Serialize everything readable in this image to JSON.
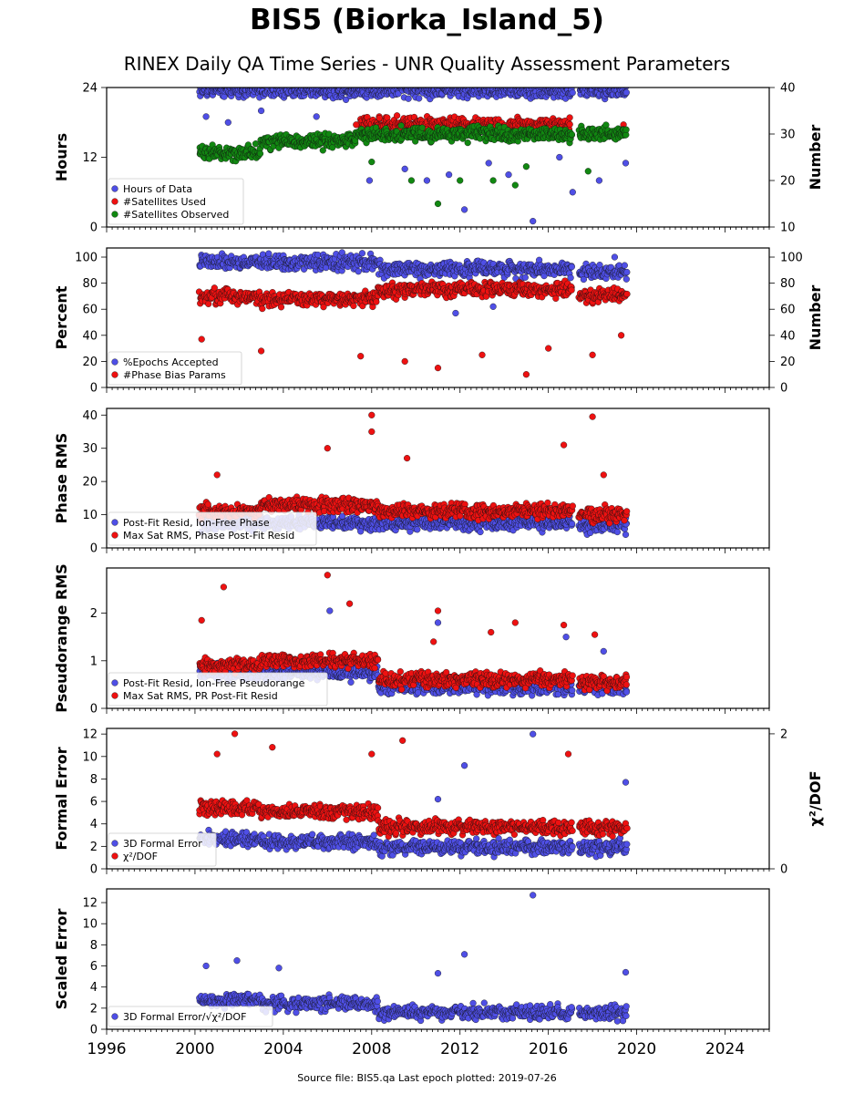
{
  "title": "BIS5 (Biorka_Island_5)",
  "subtitle": "RINEX Daily QA Time Series - UNR Quality Assessment Parameters",
  "footer": "Source file: BIS5.qa Last epoch plotted: 2019-07-26",
  "colors": {
    "blue": "#4f4fe6",
    "red": "#ee1111",
    "green": "#118811"
  },
  "chart_data": [
    {
      "type": "scatter",
      "name": "Hours / Satellites",
      "xlim": [
        1996,
        2026
      ],
      "x_ticks": [
        1996,
        2000,
        2004,
        2008,
        2012,
        2016,
        2020,
        2024
      ],
      "ylabel": "Hours",
      "ylim": [
        0,
        24
      ],
      "yticks": [
        0,
        12,
        24
      ],
      "ylabel_right": "Number",
      "ylim_right": [
        10,
        40
      ],
      "yticks_right": [
        10,
        20,
        30,
        40
      ],
      "legend": [
        "Hours of Data",
        "#Satellites Used",
        "#Satellites Observed"
      ],
      "series": [
        {
          "name": "Hours of Data",
          "axis": "left",
          "color": "blue",
          "segments": [
            [
              2000.2,
              2017.1,
              23.5
            ],
            [
              2017.4,
              2019.57,
              23.5
            ]
          ],
          "outliers": [
            [
              2000.5,
              19
            ],
            [
              2001.5,
              18
            ],
            [
              2003.0,
              20
            ],
            [
              2005.5,
              19
            ],
            [
              2007.9,
              8
            ],
            [
              2008.6,
              17
            ],
            [
              2009.5,
              10
            ],
            [
              2010.5,
              8
            ],
            [
              2011.5,
              9
            ],
            [
              2012.2,
              3
            ],
            [
              2013.3,
              11
            ],
            [
              2014.2,
              9
            ],
            [
              2015.3,
              1
            ],
            [
              2016.5,
              12
            ],
            [
              2017.1,
              6
            ],
            [
              2018.3,
              8
            ],
            [
              2019.5,
              11
            ]
          ]
        },
        {
          "name": "#Satellites Used",
          "axis": "right",
          "color": "red",
          "segments": [
            [
              2007.5,
              2017.0,
              32
            ]
          ],
          "outliers": [
            [
              2007.3,
              32
            ],
            [
              2010.5,
              31
            ],
            [
              2019.4,
              32
            ]
          ]
        },
        {
          "name": "#Satellites Observed",
          "axis": "right",
          "color": "green",
          "segments": [
            [
              2000.2,
              2003.0,
              26
            ],
            [
              2003.0,
              2007.3,
              28.5
            ],
            [
              2007.3,
              2017.1,
              30
            ],
            [
              2017.4,
              2019.57,
              30
            ]
          ],
          "outliers": [
            [
              2008.0,
              24
            ],
            [
              2009.8,
              20
            ],
            [
              2011.0,
              15
            ],
            [
              2012.0,
              20
            ],
            [
              2013.5,
              20
            ],
            [
              2014.5,
              19
            ],
            [
              2015.0,
              23
            ],
            [
              2017.8,
              22
            ]
          ]
        }
      ]
    },
    {
      "type": "scatter",
      "name": "Percent / Phase Bias",
      "xlim": [
        1996,
        2026
      ],
      "x_ticks": [
        1996,
        2000,
        2004,
        2008,
        2012,
        2016,
        2020,
        2024
      ],
      "ylabel": "Percent",
      "ylim": [
        0,
        107
      ],
      "yticks": [
        0,
        20,
        40,
        60,
        80,
        100
      ],
      "ylabel_right": "Number",
      "ylim_right": [
        0,
        107
      ],
      "yticks_right": [
        0,
        20,
        40,
        60,
        80,
        100
      ],
      "legend": [
        "%Epochs Accepted",
        "#Phase Bias Params"
      ],
      "series": [
        {
          "name": "%Epochs Accepted",
          "axis": "left",
          "color": "blue",
          "segments": [
            [
              2000.2,
              2008.3,
              96
            ],
            [
              2008.3,
              2017.1,
              91
            ],
            [
              2017.4,
              2019.57,
              89
            ]
          ],
          "outliers": [
            [
              2011.8,
              57
            ],
            [
              2013.5,
              62
            ],
            [
              2019.0,
              100
            ]
          ]
        },
        {
          "name": "#Phase Bias Params",
          "axis": "left",
          "color": "red",
          "segments": [
            [
              2000.2,
              2003.0,
              70
            ],
            [
              2003.0,
              2008.3,
              68
            ],
            [
              2008.3,
              2017.1,
              75
            ],
            [
              2017.4,
              2019.57,
              70
            ]
          ],
          "outliers": [
            [
              2000.3,
              37
            ],
            [
              2003.0,
              28
            ],
            [
              2007.5,
              24
            ],
            [
              2009.5,
              20
            ],
            [
              2011.0,
              15
            ],
            [
              2013.0,
              25
            ],
            [
              2015.0,
              10
            ],
            [
              2016.0,
              30
            ],
            [
              2018.0,
              25
            ],
            [
              2019.3,
              40
            ]
          ]
        }
      ]
    },
    {
      "type": "scatter",
      "name": "Phase RMS",
      "xlim": [
        1996,
        2026
      ],
      "x_ticks": [
        1996,
        2000,
        2004,
        2008,
        2012,
        2016,
        2020,
        2024
      ],
      "ylabel": "Phase RMS",
      "ylim": [
        0,
        42
      ],
      "yticks": [
        0,
        10,
        20,
        30,
        40
      ],
      "legend": [
        "Post-Fit Resid, Ion-Free Phase",
        "Max Sat RMS, Phase Post-Fit Resid"
      ],
      "series": [
        {
          "name": "Post-Fit Resid, Ion-Free Phase",
          "axis": "left",
          "color": "blue",
          "segments": [
            [
              2000.2,
              2017.1,
              7.5
            ],
            [
              2017.4,
              2019.57,
              7
            ]
          ],
          "outliers": [
            [
              2007.5,
              5
            ],
            [
              2019.5,
              4
            ]
          ]
        },
        {
          "name": "Max Sat RMS, Phase Post-Fit Resid",
          "axis": "left",
          "color": "red",
          "segments": [
            [
              2000.2,
              2003.0,
              11
            ],
            [
              2003.0,
              2008.3,
              13
            ],
            [
              2008.3,
              2017.1,
              11
            ],
            [
              2017.4,
              2019.57,
              10
            ]
          ],
          "outliers": [
            [
              2001.0,
              22
            ],
            [
              2006.0,
              30
            ],
            [
              2008.0,
              40
            ],
            [
              2008.0,
              35
            ],
            [
              2009.6,
              27
            ],
            [
              2016.7,
              31
            ],
            [
              2018.0,
              39.5
            ],
            [
              2018.5,
              22
            ]
          ]
        }
      ]
    },
    {
      "type": "scatter",
      "name": "Pseudorange RMS",
      "xlim": [
        1996,
        2026
      ],
      "x_ticks": [
        1996,
        2000,
        2004,
        2008,
        2012,
        2016,
        2020,
        2024
      ],
      "ylabel": "Pseudorange RMS",
      "ylim": [
        0,
        2.95
      ],
      "yticks": [
        0,
        1,
        2
      ],
      "legend": [
        "Post-Fit Resid, Ion-Free Pseudorange",
        "Max Sat RMS, PR Post-Fit Resid"
      ],
      "series": [
        {
          "name": "Post-Fit Resid, Ion-Free Pseudorange",
          "axis": "left",
          "color": "blue",
          "segments": [
            [
              2000.2,
              2003.0,
              0.75
            ],
            [
              2003.0,
              2008.3,
              0.75
            ],
            [
              2008.3,
              2017.1,
              0.45
            ],
            [
              2017.4,
              2019.57,
              0.45
            ]
          ],
          "outliers": [
            [
              2006.1,
              2.05
            ],
            [
              2011.0,
              1.8
            ],
            [
              2016.8,
              1.5
            ],
            [
              2018.5,
              1.2
            ]
          ]
        },
        {
          "name": "Max Sat RMS, PR Post-Fit Resid",
          "axis": "left",
          "color": "red",
          "segments": [
            [
              2000.2,
              2003.0,
              0.9
            ],
            [
              2003.0,
              2008.3,
              1.0
            ],
            [
              2008.3,
              2017.1,
              0.6
            ],
            [
              2017.4,
              2019.57,
              0.55
            ]
          ],
          "outliers": [
            [
              2000.3,
              1.85
            ],
            [
              2001.3,
              2.55
            ],
            [
              2006.0,
              2.8
            ],
            [
              2007.0,
              2.2
            ],
            [
              2010.8,
              1.4
            ],
            [
              2011.0,
              2.05
            ],
            [
              2013.4,
              1.6
            ],
            [
              2014.5,
              1.8
            ],
            [
              2016.7,
              1.75
            ],
            [
              2018.1,
              1.55
            ]
          ]
        }
      ]
    },
    {
      "type": "scatter",
      "name": "Formal Error",
      "xlim": [
        1996,
        2026
      ],
      "x_ticks": [
        1996,
        2000,
        2004,
        2008,
        2012,
        2016,
        2020,
        2024
      ],
      "ylabel": "Formal Error",
      "ylim": [
        0,
        12.5
      ],
      "yticks": [
        0,
        2,
        4,
        6,
        8,
        10,
        12
      ],
      "ylabel_right": "χ²/DOF",
      "ylim_right": [
        0,
        2.08
      ],
      "yticks_right": [
        0,
        2
      ],
      "legend": [
        "3D Formal Error",
        "χ²/DOF"
      ],
      "series": [
        {
          "name": "3D Formal Error",
          "axis": "left",
          "color": "blue",
          "segments": [
            [
              2000.2,
              2003.0,
              2.7
            ],
            [
              2003.0,
              2008.3,
              2.4
            ],
            [
              2008.3,
              2017.1,
              1.9
            ],
            [
              2017.4,
              2019.57,
              1.9
            ]
          ],
          "outliers": [
            [
              2012.2,
              9.2
            ],
            [
              2015.3,
              12
            ],
            [
              2019.5,
              7.7
            ],
            [
              2011.0,
              6.2
            ]
          ]
        },
        {
          "name": "χ²/DOF",
          "axis": "right",
          "color": "red",
          "segments": [
            [
              2000.2,
              2003.0,
              0.9
            ],
            [
              2003.0,
              2008.3,
              0.85
            ],
            [
              2008.3,
              2017.1,
              0.62
            ],
            [
              2017.4,
              2019.57,
              0.62
            ]
          ],
          "outliers": [
            [
              2001.0,
              1.7
            ],
            [
              2001.8,
              2.0
            ],
            [
              2003.5,
              1.8
            ],
            [
              2008.0,
              1.7
            ],
            [
              2009.4,
              1.9
            ],
            [
              2016.9,
              1.7
            ]
          ]
        }
      ]
    },
    {
      "type": "scatter",
      "name": "Scaled Error",
      "xlim": [
        1996,
        2026
      ],
      "x_ticks": [
        1996,
        2000,
        2004,
        2008,
        2012,
        2016,
        2020,
        2024
      ],
      "ylabel": "Scaled Error",
      "ylim": [
        0,
        13.3
      ],
      "yticks": [
        0,
        2,
        4,
        6,
        8,
        10,
        12
      ],
      "legend": [
        "3D Formal Error/√χ²/DOF"
      ],
      "series": [
        {
          "name": "3D Formal Error/√χ²/DOF",
          "axis": "left",
          "color": "blue",
          "segments": [
            [
              2000.2,
              2003.0,
              2.8
            ],
            [
              2003.0,
              2008.3,
              2.4
            ],
            [
              2008.3,
              2017.1,
              1.6
            ],
            [
              2017.4,
              2019.57,
              1.5
            ]
          ],
          "outliers": [
            [
              2000.5,
              6
            ],
            [
              2001.9,
              6.5
            ],
            [
              2003.8,
              5.8
            ],
            [
              2011.0,
              5.3
            ],
            [
              2012.2,
              7.1
            ],
            [
              2015.3,
              12.7
            ],
            [
              2019.5,
              5.4
            ]
          ]
        }
      ]
    }
  ]
}
